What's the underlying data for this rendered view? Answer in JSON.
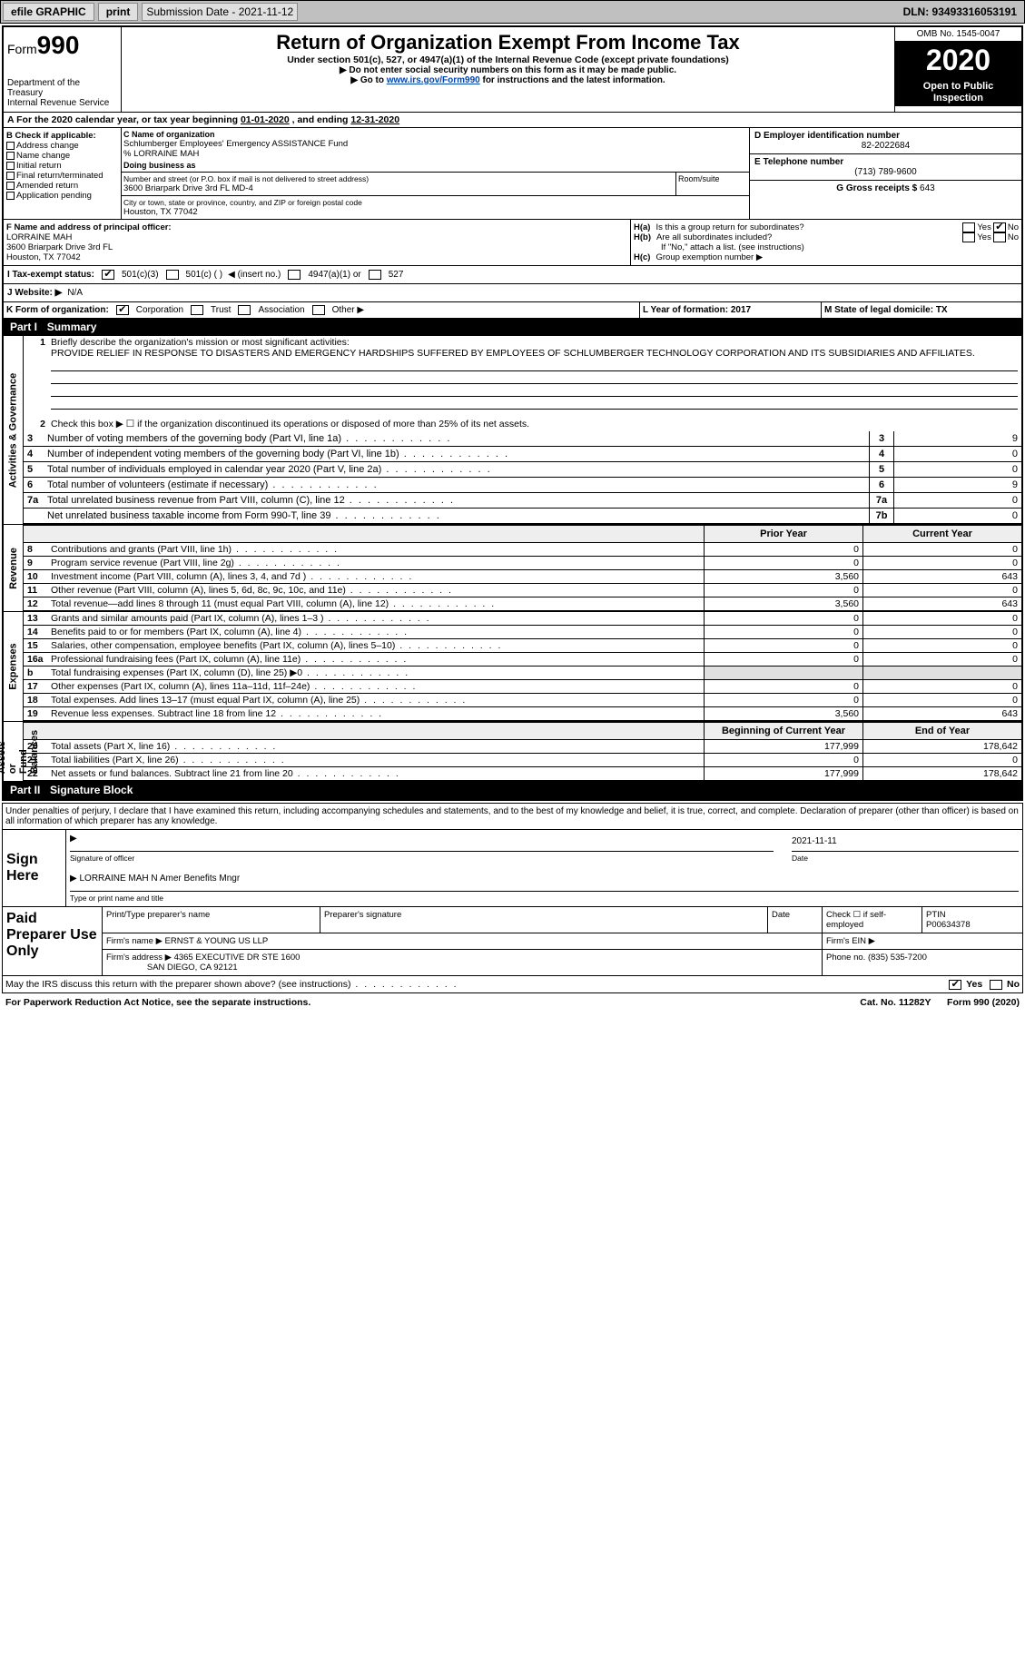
{
  "topbar": {
    "efile": "efile GRAPHIC",
    "print": "print",
    "subdate_label": "Submission Date - 2021-11-12",
    "dln": "DLN: 93493316053191"
  },
  "header": {
    "form_label": "Form",
    "form_num": "990",
    "dept": "Department of the Treasury\nInternal Revenue Service",
    "title": "Return of Organization Exempt From Income Tax",
    "sub1": "Under section 501(c), 527, or 4947(a)(1) of the Internal Revenue Code (except private foundations)",
    "sub2": "▶ Do not enter social security numbers on this form as it may be made public.",
    "sub3_pre": "▶ Go to ",
    "sub3_link": "www.irs.gov/Form990",
    "sub3_post": " for instructions and the latest information.",
    "omb": "OMB No. 1545-0047",
    "year": "2020",
    "otp": "Open to Public Inspection"
  },
  "A": {
    "label": "A For the 2020 calendar year, or tax year beginning ",
    "begin": "01-01-2020",
    "mid": " , and ending ",
    "end": "12-31-2020"
  },
  "B": {
    "label": "B Check if applicable:",
    "opts": [
      "Address change",
      "Name change",
      "Initial return",
      "Final return/terminated",
      "Amended return",
      "Application pending"
    ]
  },
  "C": {
    "name_label": "C Name of organization",
    "name1": "Schlumberger Employees' Emergency ASSISTANCE Fund",
    "name2": "% LORRAINE MAH",
    "dba": "Doing business as",
    "addr_label": "Number and street (or P.O. box if mail is not delivered to street address)",
    "addr": "3600 Briarpark Drive 3rd FL MD-4",
    "room_label": "Room/suite",
    "city_label": "City or town, state or province, country, and ZIP or foreign postal code",
    "city": "Houston, TX  77042"
  },
  "D": {
    "label": "D Employer identification number",
    "val": "82-2022684"
  },
  "E": {
    "label": "E Telephone number",
    "val": "(713) 789-9600"
  },
  "G": {
    "label": "G Gross receipts $ ",
    "val": "643"
  },
  "F": {
    "label": "F Name and address of principal officer:",
    "l1": "LORRAINE MAH",
    "l2": "3600 Briarpark Drive 3rd FL",
    "l3": "Houston, TX  77042"
  },
  "H": {
    "a": "Is this a group return for subordinates?",
    "b": "Are all subordinates included?",
    "b_note": "If \"No,\" attach a list. (see instructions)",
    "c": "Group exemption number ▶",
    "yes": "Yes",
    "no": "No"
  },
  "I": {
    "label": "I  Tax-exempt status:",
    "o1": "501(c)(3)",
    "o2": "501(c) (  )",
    "o2_hint": "◀ (insert no.)",
    "o3": "4947(a)(1) or",
    "o4": "527"
  },
  "J": {
    "label": "J  Website: ▶",
    "val": "N/A"
  },
  "K": {
    "label": "K Form of organization:",
    "o1": "Corporation",
    "o2": "Trust",
    "o3": "Association",
    "o4": "Other ▶"
  },
  "L": {
    "label": "L Year of formation: ",
    "val": "2017"
  },
  "M": {
    "label": "M State of legal domicile: ",
    "val": "TX"
  },
  "part1": {
    "bar": "Part I",
    "title": "Summary"
  },
  "p1_q1": {
    "n": "1",
    "label": "Briefly describe the organization's mission or most significant activities:",
    "text": "PROVIDE RELIEF IN RESPONSE TO DISASTERS AND EMERGENCY HARDSHIPS SUFFERED BY EMPLOYEES OF SCHLUMBERGER TECHNOLOGY CORPORATION AND ITS SUBSIDIARIES AND AFFILIATES."
  },
  "p1_q2": {
    "n": "2",
    "label": "Check this box ▶ ☐ if the organization discontinued its operations or disposed of more than 25% of its net assets."
  },
  "gov_lines": [
    {
      "n": "3",
      "desc": "Number of voting members of the governing body (Part VI, line 1a)",
      "box": "3",
      "val": "9"
    },
    {
      "n": "4",
      "desc": "Number of independent voting members of the governing body (Part VI, line 1b)",
      "box": "4",
      "val": "0"
    },
    {
      "n": "5",
      "desc": "Total number of individuals employed in calendar year 2020 (Part V, line 2a)",
      "box": "5",
      "val": "0"
    },
    {
      "n": "6",
      "desc": "Total number of volunteers (estimate if necessary)",
      "box": "6",
      "val": "9"
    },
    {
      "n": "7a",
      "desc": "Total unrelated business revenue from Part VIII, column (C), line 12",
      "box": "7a",
      "val": "0"
    },
    {
      "n": "",
      "desc": "Net unrelated business taxable income from Form 990-T, line 39",
      "box": "7b",
      "val": "0"
    }
  ],
  "col_hdr": {
    "prior": "Prior Year",
    "curr": "Current Year"
  },
  "revenue": [
    {
      "n": "8",
      "desc": "Contributions and grants (Part VIII, line 1h)",
      "prior": "0",
      "curr": "0"
    },
    {
      "n": "9",
      "desc": "Program service revenue (Part VIII, line 2g)",
      "prior": "0",
      "curr": "0"
    },
    {
      "n": "10",
      "desc": "Investment income (Part VIII, column (A), lines 3, 4, and 7d )",
      "prior": "3,560",
      "curr": "643"
    },
    {
      "n": "11",
      "desc": "Other revenue (Part VIII, column (A), lines 5, 6d, 8c, 9c, 10c, and 11e)",
      "prior": "0",
      "curr": "0"
    },
    {
      "n": "12",
      "desc": "Total revenue—add lines 8 through 11 (must equal Part VIII, column (A), line 12)",
      "prior": "3,560",
      "curr": "643"
    }
  ],
  "expenses": [
    {
      "n": "13",
      "desc": "Grants and similar amounts paid (Part IX, column (A), lines 1–3 )",
      "prior": "0",
      "curr": "0"
    },
    {
      "n": "14",
      "desc": "Benefits paid to or for members (Part IX, column (A), line 4)",
      "prior": "0",
      "curr": "0"
    },
    {
      "n": "15",
      "desc": "Salaries, other compensation, employee benefits (Part IX, column (A), lines 5–10)",
      "prior": "0",
      "curr": "0"
    },
    {
      "n": "16a",
      "desc": "Professional fundraising fees (Part IX, column (A), line 11e)",
      "prior": "0",
      "curr": "0"
    },
    {
      "n": "b",
      "desc": "Total fundraising expenses (Part IX, column (D), line 25) ▶0",
      "prior": "",
      "curr": "",
      "shade": true
    },
    {
      "n": "17",
      "desc": "Other expenses (Part IX, column (A), lines 11a–11d, 11f–24e)",
      "prior": "0",
      "curr": "0"
    },
    {
      "n": "18",
      "desc": "Total expenses. Add lines 13–17 (must equal Part IX, column (A), line 25)",
      "prior": "0",
      "curr": "0"
    },
    {
      "n": "19",
      "desc": "Revenue less expenses. Subtract line 18 from line 12",
      "prior": "3,560",
      "curr": "643"
    }
  ],
  "na_hdr": {
    "beg": "Beginning of Current Year",
    "end": "End of Year"
  },
  "netassets": [
    {
      "n": "20",
      "desc": "Total assets (Part X, line 16)",
      "prior": "177,999",
      "curr": "178,642"
    },
    {
      "n": "21",
      "desc": "Total liabilities (Part X, line 26)",
      "prior": "0",
      "curr": "0"
    },
    {
      "n": "22",
      "desc": "Net assets or fund balances. Subtract line 21 from line 20",
      "prior": "177,999",
      "curr": "178,642"
    }
  ],
  "part2": {
    "bar": "Part II",
    "title": "Signature Block"
  },
  "sig": {
    "decl": "Under penalties of perjury, I declare that I have examined this return, including accompanying schedules and statements, and to the best of my knowledge and belief, it is true, correct, and complete. Declaration of preparer (other than officer) is based on all information of which preparer has any knowledge.",
    "sign_here": "Sign Here",
    "sig_of_officer": "Signature of officer",
    "date_label": "Date",
    "date_val": "2021-11-11",
    "name": "LORRAINE MAH  N Amer Benefits Mngr",
    "name_caption": "Type or print name and title"
  },
  "paid": {
    "label": "Paid Preparer Use Only",
    "hdr": [
      "Print/Type preparer's name",
      "Preparer's signature",
      "Date"
    ],
    "check_self": "Check ☐ if self-employed",
    "ptin_label": "PTIN",
    "ptin": "P00634378",
    "firm_name_label": "Firm's name   ▶",
    "firm_name": "ERNST & YOUNG US LLP",
    "firm_ein_label": "Firm's EIN ▶",
    "firm_addr_label": "Firm's address ▶",
    "firm_addr1": "4365 EXECUTIVE DR STE 1600",
    "firm_addr2": "SAN DIEGO, CA  92121",
    "phone_label": "Phone no.",
    "phone": "(835) 535-7200"
  },
  "discuss": {
    "q": "May the IRS discuss this return with the preparer shown above? (see instructions)",
    "yes": "Yes",
    "no": "No"
  },
  "footer": {
    "pra": "For Paperwork Reduction Act Notice, see the separate instructions.",
    "cat": "Cat. No. 11282Y",
    "form": "Form 990 (2020)"
  },
  "vtabs": {
    "gov": "Activities & Governance",
    "rev": "Revenue",
    "exp": "Expenses",
    "na": "Net Assets or\nFund Balances"
  }
}
